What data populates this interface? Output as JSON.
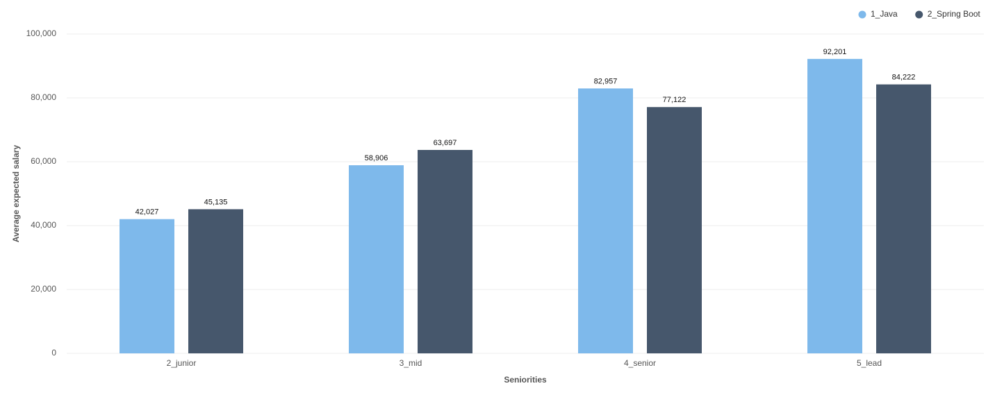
{
  "chart_data": {
    "type": "bar",
    "x_label": "Seniorities",
    "y_label": "Average expected salary",
    "categories": [
      "2_junior",
      "3_mid",
      "4_senior",
      "5_lead"
    ],
    "series": [
      {
        "name": "1_Java",
        "color": "#7eb9eb",
        "values": [
          42027,
          58906,
          82957,
          92201
        ],
        "value_labels": [
          "42,027",
          "58,906",
          "82,957",
          "92,201"
        ]
      },
      {
        "name": "2_Spring Boot",
        "color": "#46576c",
        "values": [
          45135,
          63697,
          77122,
          84222
        ],
        "value_labels": [
          "45,135",
          "63,697",
          "77,122",
          "84,222"
        ]
      }
    ],
    "ylim": [
      0,
      100000
    ],
    "yticks": [
      0,
      {
        "value": 20000,
        "label": "20,000"
      },
      {
        "value": 40000,
        "label": "40,000"
      },
      {
        "value": 60000,
        "label": "60,000"
      },
      {
        "value": 80000,
        "label": "80,000"
      },
      {
        "value": 100000,
        "label": "100,000"
      }
    ],
    "grid": true,
    "legend": "top-right"
  }
}
